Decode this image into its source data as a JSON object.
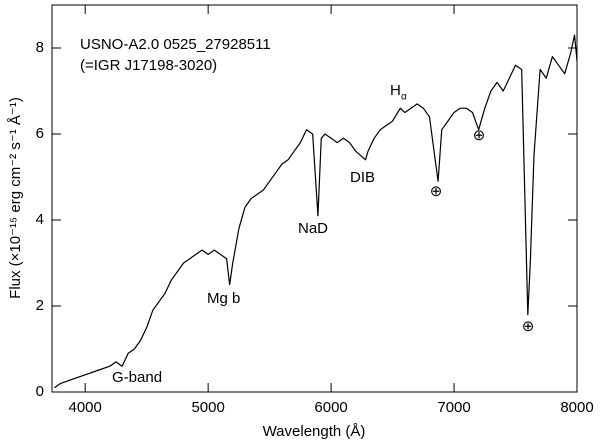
{
  "chart_data": {
    "type": "line",
    "x_label": "Wavelength (Å)",
    "y_label": "Flux (×10⁻¹⁵ erg cm⁻² s⁻¹ Å⁻¹)",
    "annotations": [
      "USNO-A2.0 0525_27928511",
      "(=IGR J17198-3020)",
      "H",
      "α",
      "NaD",
      "DIB",
      "Mg b",
      "G-band",
      "⊕",
      "⊕",
      "⊕"
    ],
    "color": "#000000",
    "x": [
      3750,
      3800,
      3900,
      4000,
      4100,
      4200,
      4250,
      4300,
      4350,
      4400,
      4450,
      4500,
      4550,
      4600,
      4650,
      4700,
      4750,
      4800,
      4850,
      4900,
      4950,
      5000,
      5050,
      5100,
      5150,
      5175,
      5200,
      5250,
      5300,
      5350,
      5400,
      5450,
      5500,
      5550,
      5600,
      5650,
      5700,
      5750,
      5800,
      5850,
      5893,
      5920,
      5950,
      6000,
      6050,
      6100,
      6150,
      6200,
      6280,
      6300,
      6350,
      6400,
      6450,
      6500,
      6563,
      6600,
      6650,
      6700,
      6750,
      6800,
      6870,
      6900,
      6950,
      7000,
      7050,
      7100,
      7150,
      7200,
      7250,
      7300,
      7350,
      7400,
      7450,
      7500,
      7550,
      7600,
      7620,
      7650,
      7700,
      7750,
      7800,
      7850,
      7900,
      7950,
      7980,
      8000
    ],
    "values": [
      0.1,
      0.2,
      0.3,
      0.4,
      0.5,
      0.6,
      0.7,
      0.6,
      0.9,
      1.0,
      1.2,
      1.5,
      1.9,
      2.1,
      2.3,
      2.6,
      2.8,
      3.0,
      3.1,
      3.2,
      3.3,
      3.2,
      3.3,
      3.2,
      3.1,
      2.5,
      3.0,
      3.8,
      4.3,
      4.5,
      4.6,
      4.7,
      4.9,
      5.1,
      5.3,
      5.4,
      5.6,
      5.8,
      6.1,
      6.0,
      4.1,
      5.9,
      6.0,
      5.9,
      5.8,
      5.9,
      5.8,
      5.6,
      5.4,
      5.6,
      5.9,
      6.1,
      6.2,
      6.3,
      6.6,
      6.5,
      6.6,
      6.7,
      6.6,
      6.4,
      4.9,
      6.1,
      6.3,
      6.5,
      6.6,
      6.6,
      6.5,
      6.1,
      6.6,
      7.0,
      7.2,
      7.0,
      7.3,
      7.6,
      7.5,
      1.8,
      3.0,
      5.5,
      7.5,
      7.3,
      7.8,
      7.6,
      7.4,
      7.9,
      8.3,
      7.7
    ],
    "xlim": [
      3730,
      8000
    ],
    "xticks": [
      4000,
      5000,
      6000,
      7000,
      8000
    ],
    "ylim": [
      0,
      9
    ],
    "yticks": [
      0,
      2,
      4,
      6,
      8
    ]
  }
}
